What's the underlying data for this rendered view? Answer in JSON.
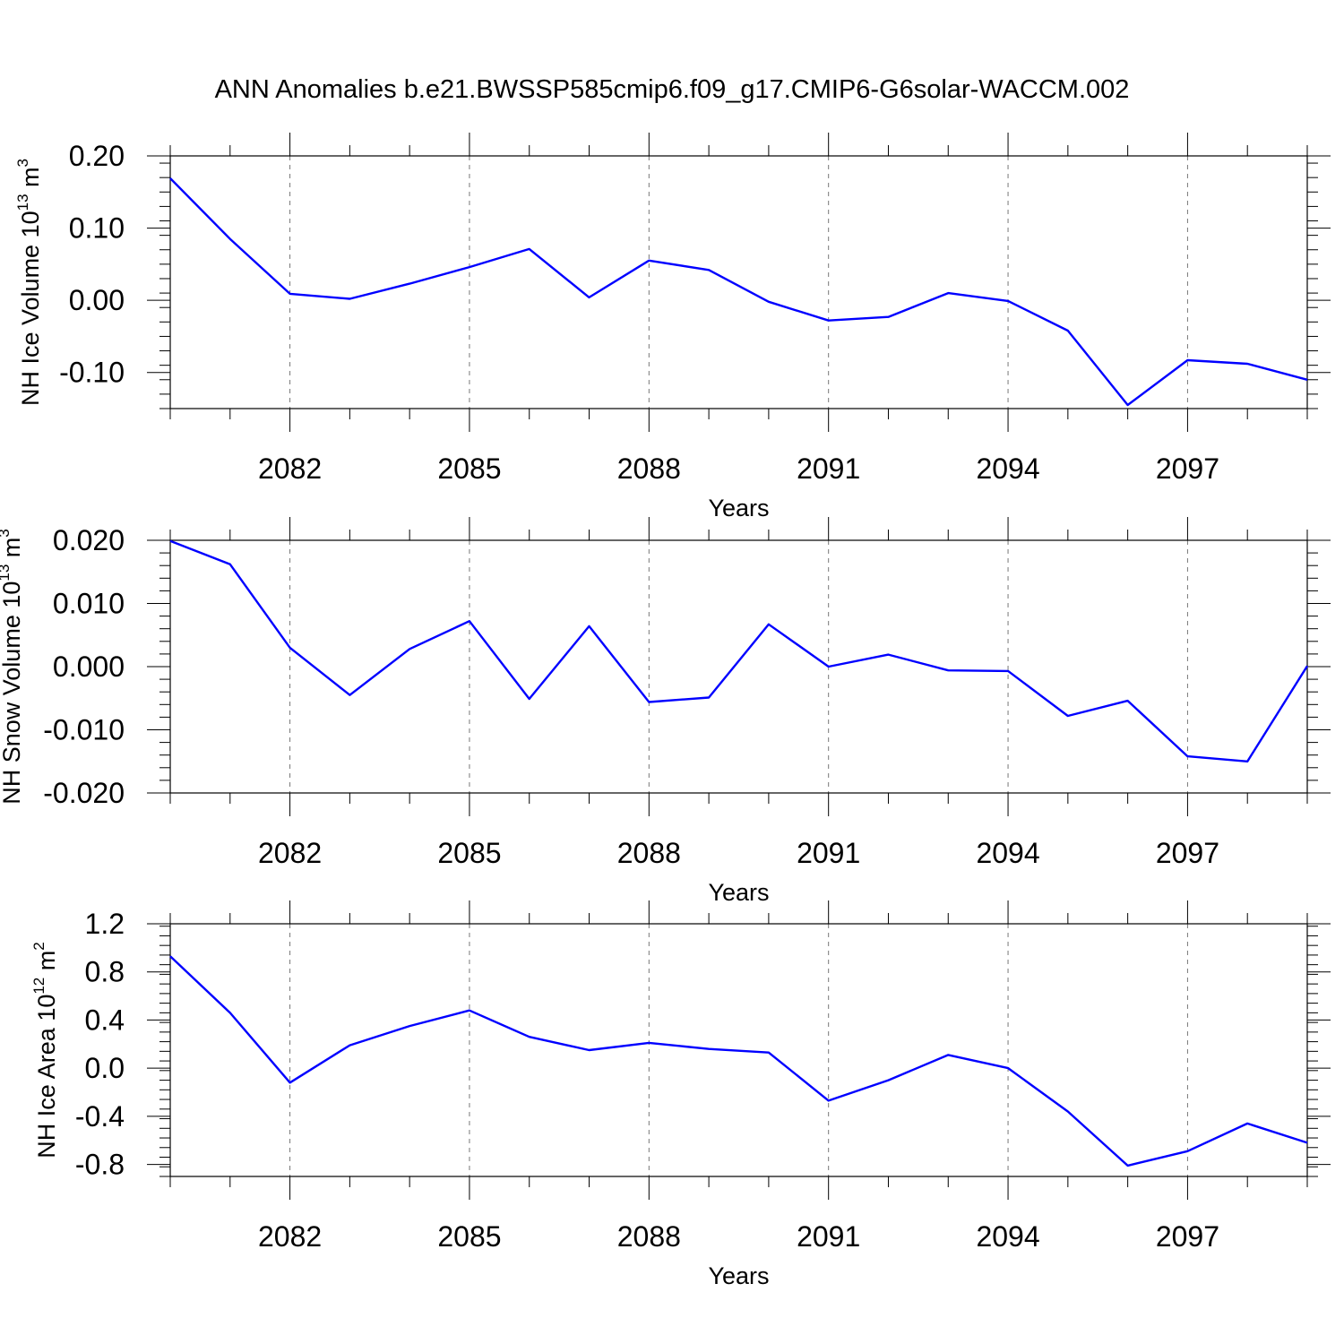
{
  "title": "ANN Anomalies b.e21.BWSSP585cmip6.f09_g17.CMIP6-G6solar-WACCM.002",
  "line_color": "#0000ff",
  "chart_data": [
    {
      "type": "line",
      "title": "ANN Anomalies b.e21.BWSSP585cmip6.f09_g17.CMIP6-G6solar-WACCM.002",
      "ylabel_main": "NH Ice Volume 10",
      "ylabel_sup1": "13",
      "ylabel_mid": " m",
      "ylabel_sup2": "3",
      "xlabel": "Years",
      "xlim": [
        2080,
        2099
      ],
      "ylim": [
        -0.15,
        0.2
      ],
      "y_ticks": [
        0.2,
        0.1,
        0.0,
        -0.1
      ],
      "y_tick_labels": [
        "0.20",
        "0.10",
        "0.00",
        "-0.10"
      ],
      "y_minor_step": 0.02,
      "x_ticks": [
        2082,
        2085,
        2088,
        2091,
        2094,
        2097
      ],
      "x_tick_labels": [
        "2082",
        "2085",
        "2088",
        "2091",
        "2094",
        "2097"
      ],
      "grid": "dashed vertical at major x ticks",
      "x": [
        2080,
        2081,
        2082,
        2083,
        2084,
        2085,
        2086,
        2087,
        2088,
        2089,
        2090,
        2091,
        2092,
        2093,
        2094,
        2095,
        2096,
        2097,
        2098,
        2099
      ],
      "series": [
        {
          "name": "NH Ice Volume",
          "values": [
            0.169,
            0.085,
            0.009,
            0.002,
            0.023,
            0.046,
            0.071,
            0.004,
            0.055,
            0.042,
            -0.002,
            -0.028,
            -0.023,
            0.01,
            -0.001,
            -0.042,
            -0.145,
            -0.083,
            -0.088,
            -0.11
          ]
        }
      ]
    },
    {
      "type": "line",
      "ylabel_main": "NH Snow Volume 10",
      "ylabel_sup1": "13",
      "ylabel_mid": " m",
      "ylabel_sup2": "3",
      "xlabel": "Years",
      "xlim": [
        2080,
        2099
      ],
      "ylim": [
        -0.02,
        0.02
      ],
      "y_ticks": [
        0.02,
        0.01,
        0.0,
        -0.01,
        -0.02
      ],
      "y_tick_labels": [
        "0.020",
        "0.010",
        "0.000",
        "-0.010",
        "-0.020"
      ],
      "y_minor_step": 0.002,
      "x_ticks": [
        2082,
        2085,
        2088,
        2091,
        2094,
        2097
      ],
      "x_tick_labels": [
        "2082",
        "2085",
        "2088",
        "2091",
        "2094",
        "2097"
      ],
      "grid": "dashed vertical at major x ticks",
      "x": [
        2080,
        2081,
        2082,
        2083,
        2084,
        2085,
        2086,
        2087,
        2088,
        2089,
        2090,
        2091,
        2092,
        2093,
        2094,
        2095,
        2096,
        2097,
        2098,
        2099
      ],
      "series": [
        {
          "name": "NH Snow Volume",
          "values": [
            0.0199,
            0.0162,
            0.003,
            -0.0045,
            0.0028,
            0.0072,
            -0.0051,
            0.0064,
            -0.0056,
            -0.0049,
            0.0067,
            0.0,
            0.0019,
            -0.0006,
            -0.0007,
            -0.0078,
            -0.0054,
            -0.0142,
            -0.015,
            0.0001
          ]
        }
      ]
    },
    {
      "type": "line",
      "ylabel_main": "NH Ice Area 10",
      "ylabel_sup1": "12",
      "ylabel_mid": " m",
      "ylabel_sup2": "2",
      "xlabel": "Years",
      "xlim": [
        2080,
        2099
      ],
      "ylim": [
        -0.9,
        1.2
      ],
      "y_ticks": [
        1.2,
        0.8,
        0.4,
        0.0,
        -0.4,
        -0.8
      ],
      "y_tick_labels": [
        "1.2",
        "0.8",
        "0.4",
        "0.0",
        "-0.4",
        "-0.8"
      ],
      "y_minor_step": 0.08,
      "x_ticks": [
        2082,
        2085,
        2088,
        2091,
        2094,
        2097
      ],
      "x_tick_labels": [
        "2082",
        "2085",
        "2088",
        "2091",
        "2094",
        "2097"
      ],
      "grid": "dashed vertical at major x ticks",
      "x": [
        2080,
        2081,
        2082,
        2083,
        2084,
        2085,
        2086,
        2087,
        2088,
        2089,
        2090,
        2091,
        2092,
        2093,
        2094,
        2095,
        2096,
        2097,
        2098,
        2099
      ],
      "series": [
        {
          "name": "NH Ice Area",
          "values": [
            0.93,
            0.46,
            -0.12,
            0.19,
            0.35,
            0.48,
            0.26,
            0.15,
            0.21,
            0.16,
            0.13,
            -0.27,
            -0.1,
            0.11,
            0.0,
            -0.36,
            -0.81,
            -0.69,
            -0.46,
            -0.62
          ]
        }
      ]
    }
  ]
}
